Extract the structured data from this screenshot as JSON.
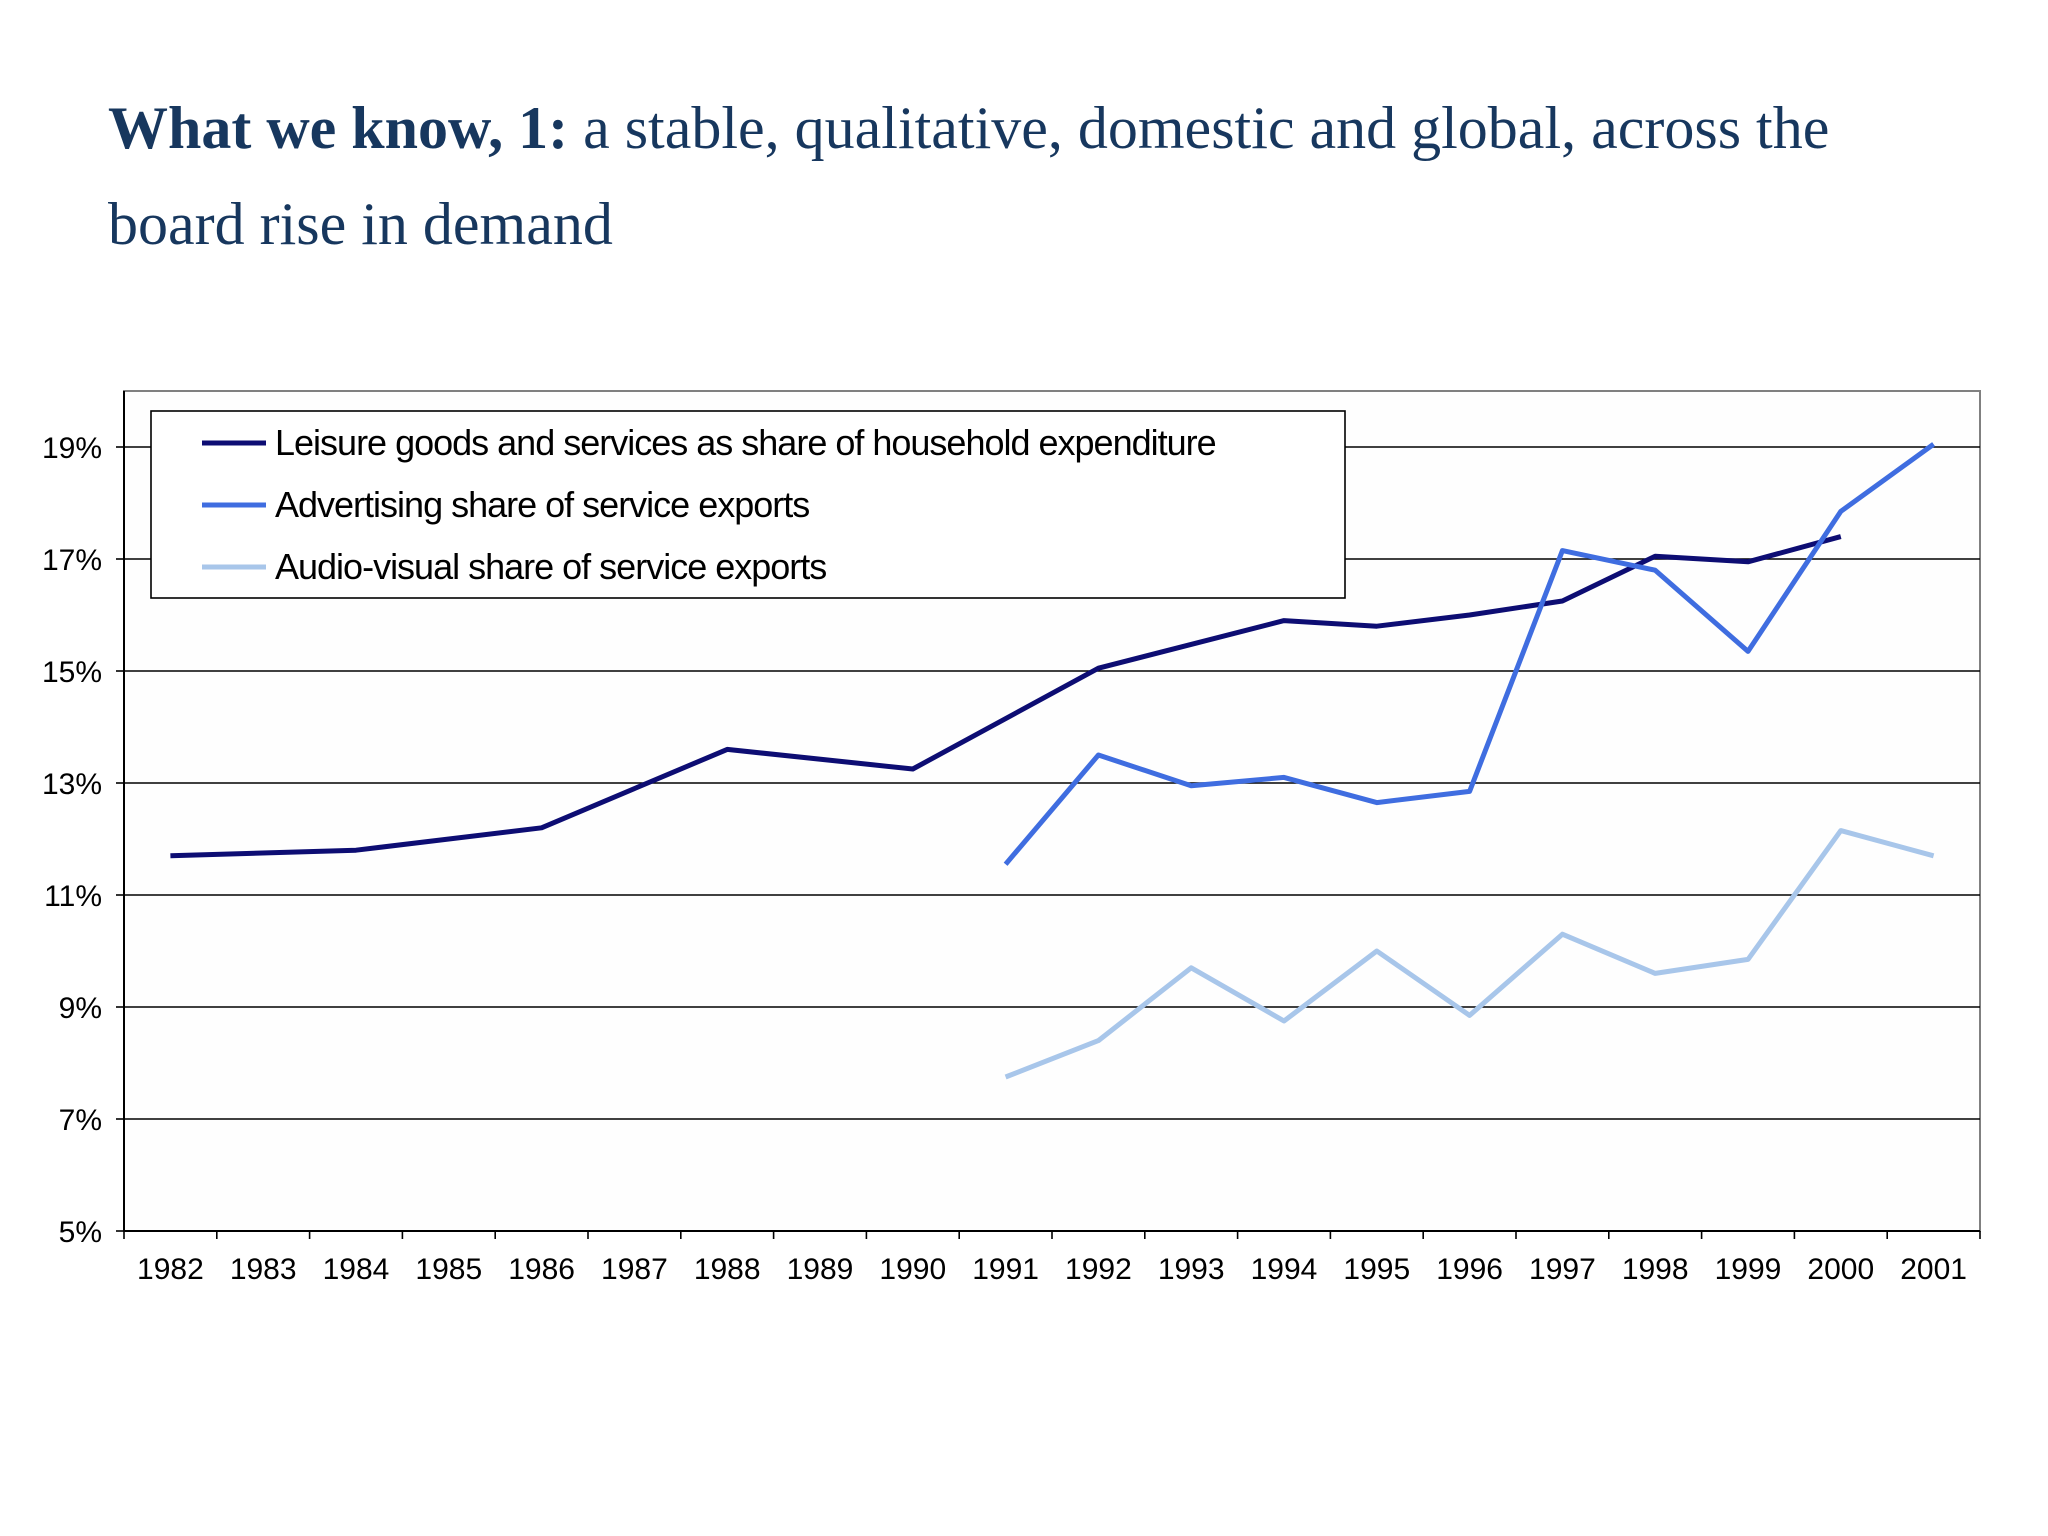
{
  "slide": {
    "title_bold": "What we know, 1:",
    "title_rest": " a stable, qualitative, domestic and global, across the board rise in demand"
  },
  "chart_data": {
    "type": "line",
    "x": [
      1982,
      1983,
      1984,
      1985,
      1986,
      1987,
      1988,
      1989,
      1990,
      1991,
      1992,
      1993,
      1994,
      1995,
      1996,
      1997,
      1998,
      1999,
      2000,
      2001
    ],
    "x_tick_labels": [
      "1982",
      "1983",
      "1984",
      "1985",
      "1986",
      "1987",
      "1988",
      "1989",
      "1990",
      "1991",
      "1992",
      "1993",
      "1994",
      "1995",
      "1996",
      "1997",
      "1998",
      "1999",
      "2000",
      "2001"
    ],
    "ylim": [
      5,
      20
    ],
    "y_ticks": [
      5,
      7,
      9,
      11,
      13,
      15,
      17,
      19
    ],
    "y_tick_labels": [
      "5%",
      "7%",
      "9%",
      "11%",
      "13%",
      "15%",
      "17%",
      "19%"
    ],
    "grid": true,
    "legend_position": "top-left",
    "series": [
      {
        "name": "Leisure goods and services as share of household expenditure",
        "color": "#0d0d73",
        "values": [
          11.7,
          null,
          11.8,
          null,
          12.2,
          null,
          13.6,
          null,
          13.25,
          null,
          15.05,
          null,
          15.9,
          15.8,
          16.0,
          16.25,
          17.05,
          16.95,
          17.4,
          null
        ]
      },
      {
        "name": "Advertising share of service exports",
        "color": "#3f6de0",
        "values": [
          null,
          null,
          null,
          null,
          null,
          null,
          null,
          null,
          null,
          11.55,
          13.5,
          12.95,
          13.1,
          12.65,
          12.85,
          17.15,
          16.8,
          15.35,
          17.85,
          19.05
        ]
      },
      {
        "name": "Audio-visual share of service exports",
        "color": "#a8c6ea",
        "values": [
          null,
          null,
          null,
          null,
          null,
          null,
          null,
          null,
          null,
          7.75,
          8.4,
          9.7,
          8.75,
          10.0,
          8.85,
          10.3,
          9.6,
          9.85,
          12.15,
          11.7
        ]
      }
    ]
  }
}
